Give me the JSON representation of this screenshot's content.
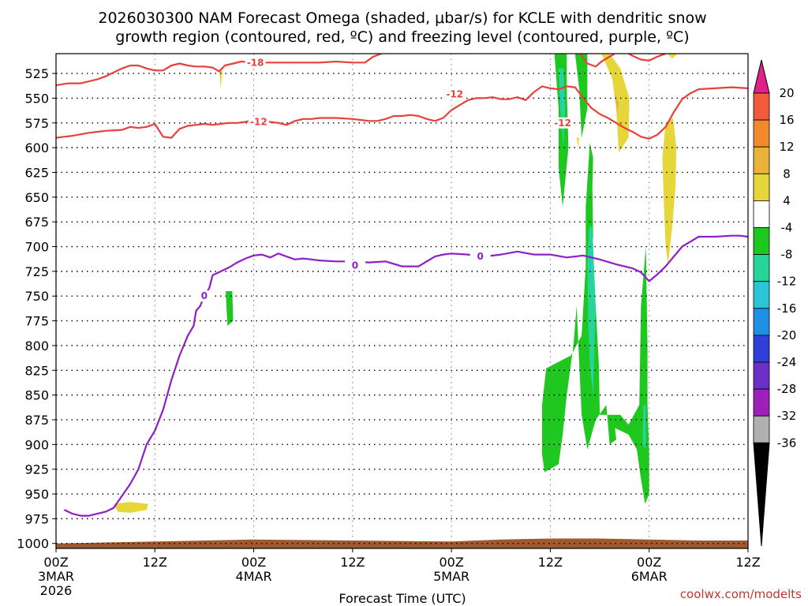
{
  "title_line1": "2026030300 NAM Forecast Omega (shaded, μbar/s) for KCLE with dendritic snow",
  "title_line2": "growth region (contoured, red, ºC) and freezing level (contoured, purple, ºC)",
  "xlabel": "Forecast Time (UTC)",
  "credit": "coolwx.com/modelts",
  "chart_data": {
    "type": "heatmap",
    "y_ticks": [
      525,
      550,
      575,
      600,
      625,
      650,
      675,
      700,
      725,
      750,
      775,
      800,
      825,
      850,
      875,
      900,
      925,
      950,
      975,
      1000
    ],
    "y_range_hpa": [
      505,
      1005
    ],
    "x_range_hours": [
      0,
      84
    ],
    "x_ticks": [
      {
        "h": 0,
        "l1": "00Z",
        "l2": "3MAR",
        "l3": "2026"
      },
      {
        "h": 12,
        "l1": "12Z",
        "l2": "",
        "l3": ""
      },
      {
        "h": 24,
        "l1": "00Z",
        "l2": "4MAR",
        "l3": ""
      },
      {
        "h": 36,
        "l1": "12Z",
        "l2": "",
        "l3": ""
      },
      {
        "h": 48,
        "l1": "00Z",
        "l2": "5MAR",
        "l3": ""
      },
      {
        "h": 60,
        "l1": "12Z",
        "l2": "",
        "l3": ""
      },
      {
        "h": 72,
        "l1": "00Z",
        "l2": "6MAR",
        "l3": ""
      },
      {
        "h": 84,
        "l1": "12Z",
        "l2": "",
        "l3": ""
      }
    ],
    "colorbar": [
      {
        "label": "20",
        "color": "#e0218a"
      },
      {
        "label": "16",
        "color": "#f25a3c"
      },
      {
        "label": "12",
        "color": "#f08a2c"
      },
      {
        "label": "8",
        "color": "#e9b23a"
      },
      {
        "label": "4",
        "color": "#e6d63a"
      },
      {
        "label": "-4",
        "color": "#ffffff"
      },
      {
        "label": "-8",
        "color": "#1ec81e"
      },
      {
        "label": "-12",
        "color": "#27d49a"
      },
      {
        "label": "-16",
        "color": "#29c6d6"
      },
      {
        "label": "-20",
        "color": "#1f8fe6"
      },
      {
        "label": "-24",
        "color": "#2f3fd8"
      },
      {
        "label": "-28",
        "color": "#6a2fc6"
      },
      {
        "label": "-32",
        "color": "#9b1fb8"
      },
      {
        "label": "-36",
        "color": "#b0b0b0"
      }
    ],
    "colorbar_ends": {
      "top": "#e0218a",
      "bottom": "#000000"
    },
    "ground_color": "#9e5a2e",
    "contours": [
      {
        "name": "minus-18-contour",
        "label": "-18",
        "color": "#e8413c",
        "points": [
          [
            0,
            537
          ],
          [
            1.5,
            535
          ],
          [
            3,
            535
          ],
          [
            5,
            531
          ],
          [
            6,
            528
          ],
          [
            7,
            524
          ],
          [
            8,
            520
          ],
          [
            9,
            517
          ],
          [
            10,
            517
          ],
          [
            11,
            520
          ],
          [
            12,
            522
          ],
          [
            13,
            522
          ],
          [
            14,
            517
          ],
          [
            15,
            515
          ],
          [
            16,
            517
          ],
          [
            17,
            518
          ],
          [
            18,
            518
          ],
          [
            19,
            519
          ],
          [
            19.8,
            523
          ],
          [
            20.5,
            517
          ],
          [
            21.5,
            515
          ],
          [
            22.5,
            513
          ],
          [
            24,
            514
          ],
          [
            26,
            514
          ],
          [
            28,
            514
          ],
          [
            30,
            514
          ],
          [
            32,
            514
          ],
          [
            34,
            513
          ],
          [
            36,
            514
          ],
          [
            37.5,
            514
          ],
          [
            38.5,
            508
          ],
          [
            39.5,
            505
          ]
        ],
        "label_at": [
          24.2,
          514
        ]
      },
      {
        "name": "minus-18-contour-east",
        "label": "",
        "color": "#e8413c",
        "points": [
          [
            63.6,
            505
          ],
          [
            64.5,
            515
          ],
          [
            65.5,
            518
          ],
          [
            66.2,
            513
          ],
          [
            67,
            509
          ],
          [
            67.8,
            505
          ]
        ],
        "label_at": null
      },
      {
        "name": "minus-18-contour-east2",
        "label": "",
        "color": "#e8413c",
        "points": [
          [
            69.5,
            505
          ],
          [
            70.2,
            508
          ],
          [
            71,
            511
          ],
          [
            72,
            512
          ],
          [
            73,
            508
          ],
          [
            74,
            505
          ]
        ],
        "label_at": null
      },
      {
        "name": "minus-12-upper-contour",
        "label": "-12",
        "color": "#e8413c",
        "points": [
          [
            46,
            573
          ],
          [
            47,
            570
          ],
          [
            48,
            562
          ],
          [
            49,
            557
          ],
          [
            50,
            552
          ],
          [
            51,
            550
          ],
          [
            52,
            550
          ],
          [
            53,
            549
          ],
          [
            54,
            551
          ],
          [
            55,
            551
          ],
          [
            56,
            549
          ],
          [
            57,
            552
          ],
          [
            58,
            544
          ],
          [
            59,
            538
          ],
          [
            60,
            540
          ],
          [
            61,
            541
          ],
          [
            62,
            538
          ],
          [
            63,
            539
          ],
          [
            64,
            550
          ],
          [
            65,
            560
          ],
          [
            66,
            566
          ],
          [
            67,
            570
          ],
          [
            68,
            575
          ],
          [
            69,
            580
          ],
          [
            70,
            584
          ],
          [
            71,
            589
          ],
          [
            72,
            591
          ],
          [
            73,
            587
          ],
          [
            74,
            579
          ],
          [
            75,
            564
          ],
          [
            76,
            551
          ],
          [
            77,
            545
          ],
          [
            78,
            541
          ],
          [
            80,
            540
          ],
          [
            82,
            539
          ],
          [
            84,
            540
          ]
        ],
        "label_at": [
          48.4,
          546
        ]
      },
      {
        "name": "minus-12-lower-contour",
        "label": "-12",
        "color": "#e8413c",
        "points": [
          [
            0,
            590
          ],
          [
            1,
            589
          ],
          [
            2,
            588
          ],
          [
            4,
            585
          ],
          [
            6,
            583
          ],
          [
            8,
            582
          ],
          [
            9,
            579
          ],
          [
            10,
            580
          ],
          [
            11,
            579
          ],
          [
            12,
            576
          ],
          [
            13,
            589
          ],
          [
            14,
            590
          ],
          [
            15,
            581
          ],
          [
            16,
            578
          ],
          [
            17,
            577
          ],
          [
            18,
            576
          ],
          [
            19,
            577
          ],
          [
            20,
            576
          ],
          [
            21,
            575
          ],
          [
            22,
            575
          ],
          [
            23,
            574
          ],
          [
            24,
            572
          ],
          [
            25,
            574
          ],
          [
            26,
            574
          ],
          [
            27,
            575
          ],
          [
            28,
            577
          ],
          [
            29,
            573
          ],
          [
            30,
            571
          ],
          [
            31,
            571
          ],
          [
            32,
            570
          ],
          [
            34,
            570
          ],
          [
            36,
            571
          ],
          [
            37,
            572
          ],
          [
            38,
            573
          ],
          [
            39,
            573
          ],
          [
            40,
            571
          ],
          [
            41,
            568
          ],
          [
            42,
            568
          ],
          [
            43,
            567
          ],
          [
            44,
            568
          ],
          [
            45,
            571
          ],
          [
            46,
            573
          ]
        ],
        "label_at": [
          24.6,
          574
        ]
      },
      {
        "name": "freezing-level-contour",
        "label": "0",
        "color": "#8e1ec8",
        "points": [
          [
            1,
            966
          ],
          [
            2,
            970
          ],
          [
            3,
            972
          ],
          [
            4,
            972
          ],
          [
            5,
            970
          ],
          [
            6,
            968
          ],
          [
            7,
            964
          ],
          [
            8,
            952
          ],
          [
            9,
            940
          ],
          [
            10,
            925
          ],
          [
            11,
            900
          ],
          [
            12,
            886
          ],
          [
            13,
            865
          ],
          [
            14,
            835
          ],
          [
            15,
            810
          ],
          [
            16,
            790
          ],
          [
            16.7,
            780
          ],
          [
            17,
            765
          ],
          [
            17.5,
            760
          ],
          [
            18,
            750
          ],
          [
            18.6,
            742
          ],
          [
            19,
            729
          ],
          [
            20,
            725
          ],
          [
            21,
            721
          ],
          [
            22,
            716
          ],
          [
            23,
            712
          ],
          [
            24,
            709
          ],
          [
            25,
            708
          ],
          [
            26,
            711
          ],
          [
            27,
            707
          ],
          [
            28,
            710
          ],
          [
            29,
            713
          ],
          [
            30,
            712
          ],
          [
            31,
            713
          ],
          [
            32,
            714
          ],
          [
            34,
            715
          ],
          [
            36,
            715
          ],
          [
            38,
            716
          ],
          [
            40,
            715
          ],
          [
            42,
            720
          ],
          [
            44,
            720
          ],
          [
            45,
            715
          ],
          [
            46,
            710
          ],
          [
            47,
            708
          ],
          [
            48,
            707
          ],
          [
            50,
            708
          ],
          [
            52,
            710
          ],
          [
            54,
            708
          ],
          [
            56,
            705
          ],
          [
            58,
            708
          ],
          [
            60,
            708
          ],
          [
            62,
            711
          ],
          [
            64,
            709
          ],
          [
            66,
            713
          ],
          [
            68,
            718
          ],
          [
            70,
            722
          ],
          [
            71,
            726
          ],
          [
            72,
            735
          ],
          [
            73,
            728
          ],
          [
            74,
            720
          ],
          [
            75,
            710
          ],
          [
            76,
            700
          ],
          [
            77,
            695
          ],
          [
            78,
            690
          ],
          [
            80,
            690
          ],
          [
            82,
            689
          ],
          [
            83,
            689
          ],
          [
            84,
            690
          ]
        ],
        "label_at": [
          18,
          750
        ]
      }
    ]
  }
}
